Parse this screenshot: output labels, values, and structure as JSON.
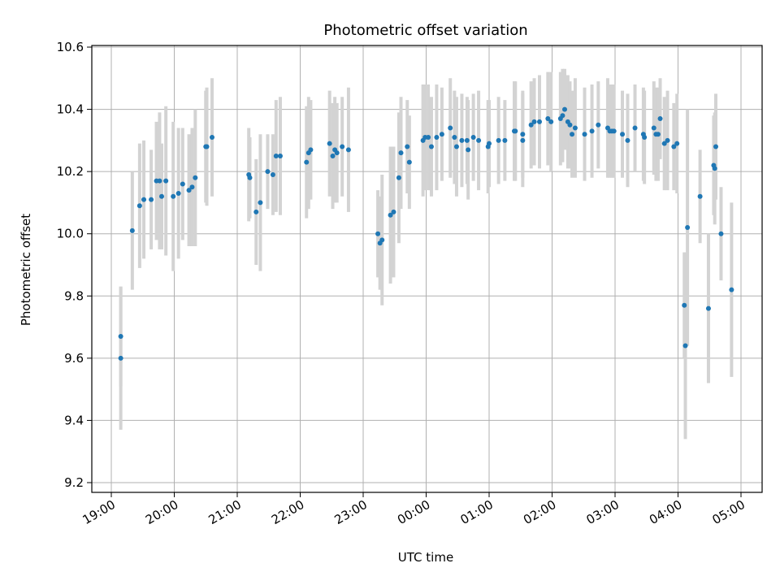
{
  "chart_data": {
    "type": "scatter",
    "title": "Photometric offset variation",
    "xlabel": "UTC time",
    "ylabel": "Photometric offset",
    "x_axis_kind": "time",
    "x_range": [
      "19:00",
      "05:00"
    ],
    "x_ticks": [
      "19:00",
      "20:00",
      "21:00",
      "22:00",
      "23:00",
      "00:00",
      "01:00",
      "02:00",
      "03:00",
      "04:00",
      "05:00"
    ],
    "ylim": [
      9.2,
      10.6
    ],
    "y_ticks": [
      "9.2",
      "9.4",
      "9.6",
      "9.8",
      "10.0",
      "10.2",
      "10.4",
      "10.6"
    ],
    "grid": true,
    "marker_color": "#1f77b4",
    "errorbar_color": "#d3d3d3",
    "series": [
      {
        "points": [
          {
            "t": "19:09",
            "y": 9.6,
            "err": 0.23
          },
          {
            "t": "19:09",
            "y": 9.67,
            "err": 0.16
          },
          {
            "t": "19:20",
            "y": 10.01,
            "err": 0.19
          },
          {
            "t": "19:27",
            "y": 10.09,
            "err": 0.2
          },
          {
            "t": "19:31",
            "y": 10.11,
            "err": 0.19
          },
          {
            "t": "19:38",
            "y": 10.11,
            "err": 0.16
          },
          {
            "t": "19:43",
            "y": 10.17,
            "err": 0.19
          },
          {
            "t": "19:46",
            "y": 10.17,
            "err": 0.22
          },
          {
            "t": "19:48",
            "y": 10.12,
            "err": 0.17
          },
          {
            "t": "19:52",
            "y": 10.17,
            "err": 0.24
          },
          {
            "t": "19:59",
            "y": 10.12,
            "err": 0.24
          },
          {
            "t": "20:04",
            "y": 10.13,
            "err": 0.21
          },
          {
            "t": "20:08",
            "y": 10.16,
            "err": 0.18
          },
          {
            "t": "20:14",
            "y": 10.14,
            "err": 0.18
          },
          {
            "t": "20:17",
            "y": 10.15,
            "err": 0.19
          },
          {
            "t": "20:20",
            "y": 10.18,
            "err": 0.22
          },
          {
            "t": "20:30",
            "y": 10.28,
            "err": 0.18
          },
          {
            "t": "20:31",
            "y": 10.28,
            "err": 0.19
          },
          {
            "t": "20:36",
            "y": 10.31,
            "err": 0.19
          },
          {
            "t": "21:11",
            "y": 10.19,
            "err": 0.15
          },
          {
            "t": "21:12",
            "y": 10.18,
            "err": 0.13
          },
          {
            "t": "21:18",
            "y": 10.07,
            "err": 0.17
          },
          {
            "t": "21:22",
            "y": 10.1,
            "err": 0.22
          },
          {
            "t": "21:29",
            "y": 10.2,
            "err": 0.12
          },
          {
            "t": "21:34",
            "y": 10.19,
            "err": 0.13
          },
          {
            "t": "21:37",
            "y": 10.25,
            "err": 0.18
          },
          {
            "t": "21:41",
            "y": 10.25,
            "err": 0.19
          },
          {
            "t": "22:06",
            "y": 10.23,
            "err": 0.18
          },
          {
            "t": "22:08",
            "y": 10.26,
            "err": 0.18
          },
          {
            "t": "22:10",
            "y": 10.27,
            "err": 0.16
          },
          {
            "t": "22:28",
            "y": 10.29,
            "err": 0.17
          },
          {
            "t": "22:31",
            "y": 10.25,
            "err": 0.17
          },
          {
            "t": "22:33",
            "y": 10.27,
            "err": 0.17
          },
          {
            "t": "22:35",
            "y": 10.26,
            "err": 0.16
          },
          {
            "t": "22:40",
            "y": 10.28,
            "err": 0.16
          },
          {
            "t": "22:46",
            "y": 10.27,
            "err": 0.2
          },
          {
            "t": "23:14",
            "y": 10.0,
            "err": 0.14
          },
          {
            "t": "23:16",
            "y": 9.97,
            "err": 0.15
          },
          {
            "t": "23:18",
            "y": 9.98,
            "err": 0.21
          },
          {
            "t": "23:26",
            "y": 10.06,
            "err": 0.22
          },
          {
            "t": "23:29",
            "y": 10.07,
            "err": 0.21
          },
          {
            "t": "23:34",
            "y": 10.18,
            "err": 0.21
          },
          {
            "t": "23:36",
            "y": 10.26,
            "err": 0.18
          },
          {
            "t": "23:42",
            "y": 10.28,
            "err": 0.15
          },
          {
            "t": "23:44",
            "y": 10.23,
            "err": 0.15
          },
          {
            "t": "23:57",
            "y": 10.3,
            "err": 0.18
          },
          {
            "t": "23:59",
            "y": 10.31,
            "err": 0.17
          },
          {
            "t": "00:02",
            "y": 10.31,
            "err": 0.17
          },
          {
            "t": "00:05",
            "y": 10.28,
            "err": 0.16
          },
          {
            "t": "00:10",
            "y": 10.31,
            "err": 0.17
          },
          {
            "t": "00:15",
            "y": 10.32,
            "err": 0.15
          },
          {
            "t": "00:23",
            "y": 10.34,
            "err": 0.16
          },
          {
            "t": "00:27",
            "y": 10.31,
            "err": 0.15
          },
          {
            "t": "00:29",
            "y": 10.28,
            "err": 0.16
          },
          {
            "t": "00:34",
            "y": 10.3,
            "err": 0.15
          },
          {
            "t": "00:39",
            "y": 10.3,
            "err": 0.14
          },
          {
            "t": "00:40",
            "y": 10.27,
            "err": 0.16
          },
          {
            "t": "00:45",
            "y": 10.31,
            "err": 0.14
          },
          {
            "t": "00:50",
            "y": 10.3,
            "err": 0.16
          },
          {
            "t": "00:59",
            "y": 10.28,
            "err": 0.15
          },
          {
            "t": "01:00",
            "y": 10.29,
            "err": 0.14
          },
          {
            "t": "01:09",
            "y": 10.3,
            "err": 0.14
          },
          {
            "t": "01:15",
            "y": 10.3,
            "err": 0.13
          },
          {
            "t": "01:24",
            "y": 10.33,
            "err": 0.16
          },
          {
            "t": "01:25",
            "y": 10.33,
            "err": 0.16
          },
          {
            "t": "01:32",
            "y": 10.32,
            "err": 0.14
          },
          {
            "t": "01:32",
            "y": 10.3,
            "err": 0.15
          },
          {
            "t": "01:40",
            "y": 10.35,
            "err": 0.14
          },
          {
            "t": "01:43",
            "y": 10.36,
            "err": 0.14
          },
          {
            "t": "01:48",
            "y": 10.36,
            "err": 0.15
          },
          {
            "t": "01:56",
            "y": 10.37,
            "err": 0.15
          },
          {
            "t": "01:59",
            "y": 10.36,
            "err": 0.16
          },
          {
            "t": "02:08",
            "y": 10.37,
            "err": 0.15
          },
          {
            "t": "02:10",
            "y": 10.38,
            "err": 0.15
          },
          {
            "t": "02:12",
            "y": 10.4,
            "err": 0.13
          },
          {
            "t": "02:15",
            "y": 10.36,
            "err": 0.15
          },
          {
            "t": "02:17",
            "y": 10.35,
            "err": 0.14
          },
          {
            "t": "02:19",
            "y": 10.32,
            "err": 0.14
          },
          {
            "t": "02:22",
            "y": 10.34,
            "err": 0.16
          },
          {
            "t": "02:31",
            "y": 10.32,
            "err": 0.15
          },
          {
            "t": "02:38",
            "y": 10.33,
            "err": 0.15
          },
          {
            "t": "02:44",
            "y": 10.35,
            "err": 0.14
          },
          {
            "t": "02:53",
            "y": 10.34,
            "err": 0.16
          },
          {
            "t": "02:55",
            "y": 10.33,
            "err": 0.15
          },
          {
            "t": "02:57",
            "y": 10.33,
            "err": 0.15
          },
          {
            "t": "02:59",
            "y": 10.33,
            "err": 0.15
          },
          {
            "t": "03:07",
            "y": 10.32,
            "err": 0.14
          },
          {
            "t": "03:12",
            "y": 10.3,
            "err": 0.15
          },
          {
            "t": "03:19",
            "y": 10.34,
            "err": 0.14
          },
          {
            "t": "03:27",
            "y": 10.32,
            "err": 0.15
          },
          {
            "t": "03:28",
            "y": 10.31,
            "err": 0.15
          },
          {
            "t": "03:37",
            "y": 10.34,
            "err": 0.15
          },
          {
            "t": "03:39",
            "y": 10.32,
            "err": 0.15
          },
          {
            "t": "03:41",
            "y": 10.32,
            "err": 0.15
          },
          {
            "t": "03:43",
            "y": 10.37,
            "err": 0.13
          },
          {
            "t": "03:47",
            "y": 10.29,
            "err": 0.15
          },
          {
            "t": "03:50",
            "y": 10.3,
            "err": 0.16
          },
          {
            "t": "03:56",
            "y": 10.28,
            "err": 0.14
          },
          {
            "t": "03:59",
            "y": 10.29,
            "err": 0.16
          },
          {
            "t": "04:06",
            "y": 9.77,
            "err": 0.17
          },
          {
            "t": "04:07",
            "y": 9.64,
            "err": 0.3
          },
          {
            "t": "04:09",
            "y": 10.02,
            "err": 0.38
          },
          {
            "t": "04:21",
            "y": 10.12,
            "err": 0.15
          },
          {
            "t": "04:29",
            "y": 9.76,
            "err": 0.24
          },
          {
            "t": "04:34",
            "y": 10.22,
            "err": 0.16
          },
          {
            "t": "04:35",
            "y": 10.21,
            "err": 0.18
          },
          {
            "t": "04:36",
            "y": 10.28,
            "err": 0.17
          },
          {
            "t": "04:41",
            "y": 10.0,
            "err": 0.15
          },
          {
            "t": "04:51",
            "y": 9.82,
            "err": 0.28
          }
        ]
      }
    ]
  }
}
